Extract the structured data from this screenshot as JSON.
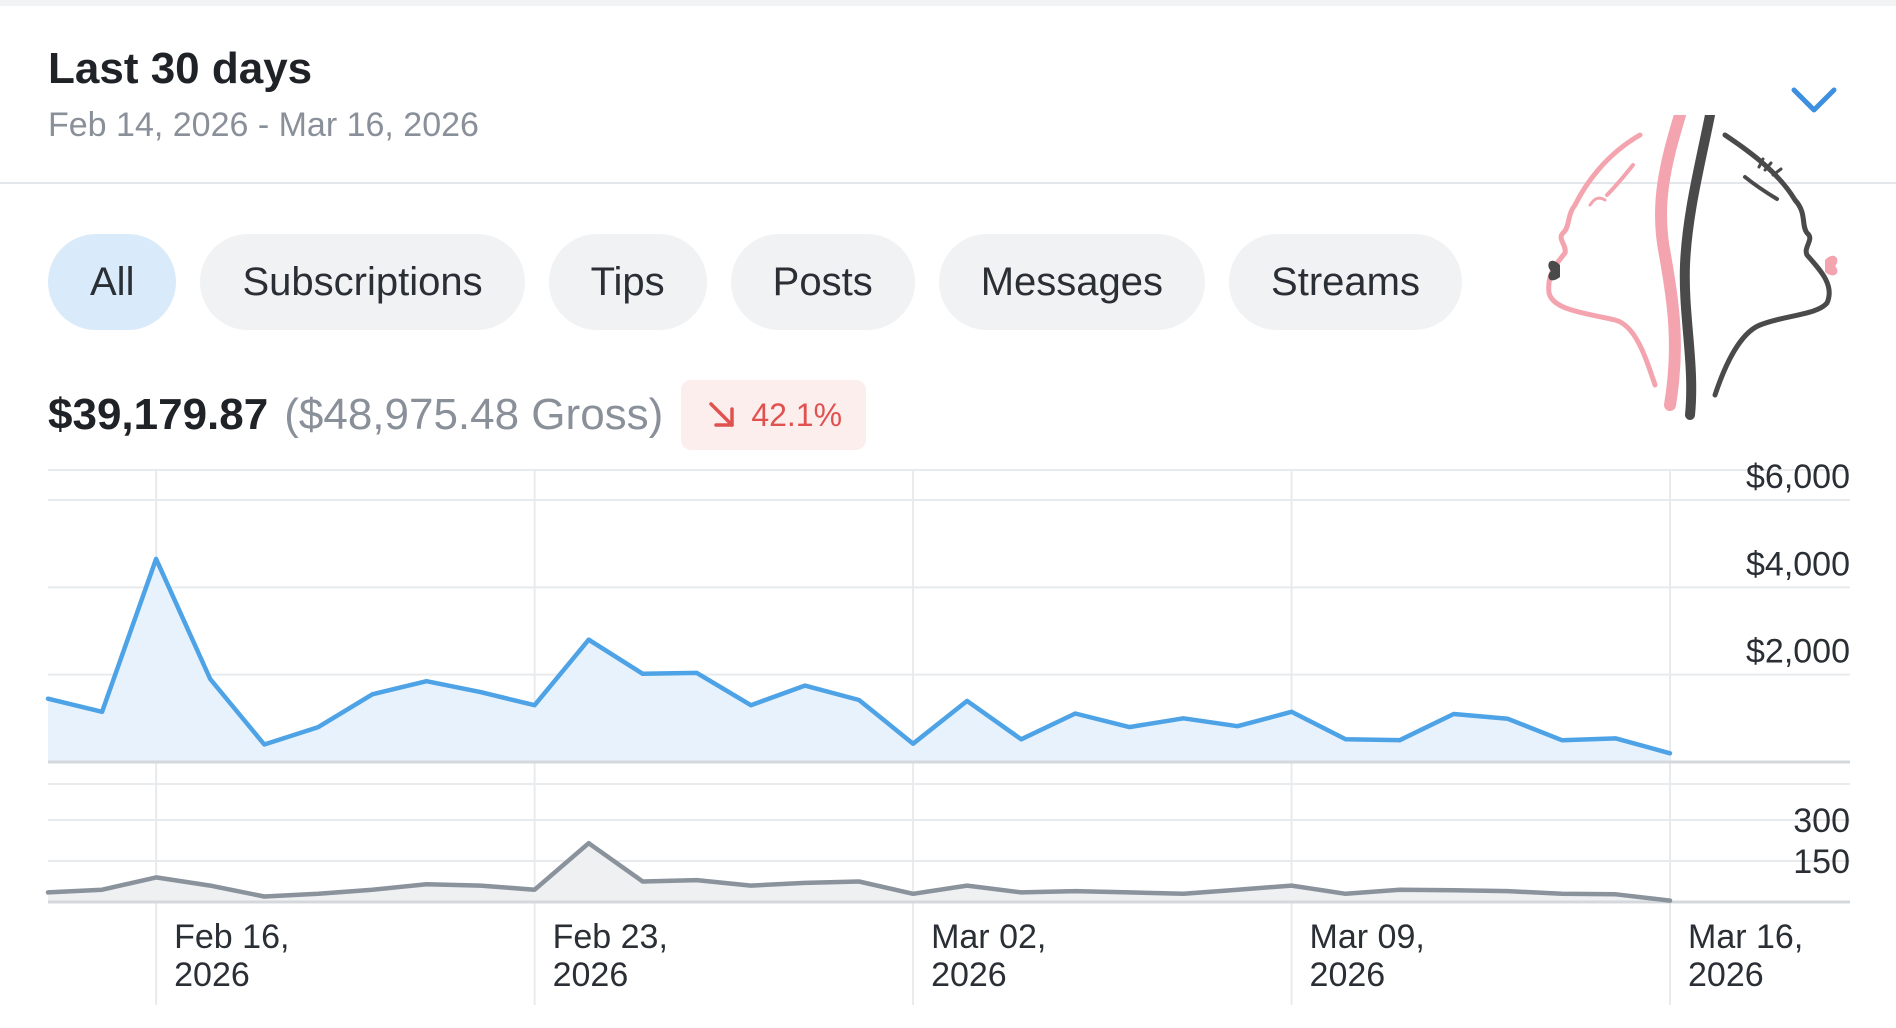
{
  "header": {
    "title": "Last 30 days",
    "date_range": "Feb 14, 2026 - Mar 16, 2026",
    "dropdown_icon": "chevron-down-icon"
  },
  "tabs": [
    {
      "label": "All",
      "active": true
    },
    {
      "label": "Subscriptions",
      "active": false
    },
    {
      "label": "Tips",
      "active": false
    },
    {
      "label": "Posts",
      "active": false
    },
    {
      "label": "Messages",
      "active": false
    },
    {
      "label": "Streams",
      "active": false
    }
  ],
  "summary": {
    "net": "$39,179.87",
    "gross": "($48,975.48 Gross)",
    "change": "42.1%",
    "change_direction": "down",
    "change_icon": "arrow-down-right-icon"
  },
  "colors": {
    "accent": "#4da3e6",
    "earnings_fill": "#e8f2fc",
    "count_line": "#8a929c",
    "count_fill": "#eef0f2",
    "negative": "#e0524f",
    "logo_pink": "#f4a4ae",
    "logo_dark": "#4a4a4a"
  },
  "chart_data": [
    {
      "type": "area",
      "name": "earnings",
      "x": [
        "2026-02-14",
        "2026-02-15",
        "2026-02-16",
        "2026-02-17",
        "2026-02-18",
        "2026-02-19",
        "2026-02-20",
        "2026-02-21",
        "2026-02-22",
        "2026-02-23",
        "2026-02-24",
        "2026-02-25",
        "2026-02-26",
        "2026-02-27",
        "2026-02-28",
        "2026-03-01",
        "2026-03-02",
        "2026-03-03",
        "2026-03-04",
        "2026-03-05",
        "2026-03-06",
        "2026-03-07",
        "2026-03-08",
        "2026-03-09",
        "2026-03-10",
        "2026-03-11",
        "2026-03-12",
        "2026-03-13",
        "2026-03-14",
        "2026-03-15",
        "2026-03-16"
      ],
      "values": [
        1450,
        1150,
        4650,
        1900,
        400,
        800,
        1550,
        1850,
        1600,
        1300,
        2800,
        2020,
        2040,
        1300,
        1750,
        1420,
        420,
        1400,
        520,
        1110,
        800,
        1000,
        820,
        1150,
        520,
        500,
        1100,
        990,
        500,
        540,
        200
      ],
      "ylim": [
        0,
        6000
      ],
      "y_ticks": [
        "$6,000",
        "$4,000",
        "$2,000"
      ],
      "y_tick_values": [
        6000,
        4000,
        2000
      ],
      "grid": true
    },
    {
      "type": "area",
      "name": "count",
      "x": [
        "2026-02-14",
        "2026-02-15",
        "2026-02-16",
        "2026-02-17",
        "2026-02-18",
        "2026-02-19",
        "2026-02-20",
        "2026-02-21",
        "2026-02-22",
        "2026-02-23",
        "2026-02-24",
        "2026-02-25",
        "2026-02-26",
        "2026-02-27",
        "2026-02-28",
        "2026-03-01",
        "2026-03-02",
        "2026-03-03",
        "2026-03-04",
        "2026-03-05",
        "2026-03-06",
        "2026-03-07",
        "2026-03-08",
        "2026-03-09",
        "2026-03-10",
        "2026-03-11",
        "2026-03-12",
        "2026-03-13",
        "2026-03-14",
        "2026-03-15",
        "2026-03-16"
      ],
      "values": [
        35,
        45,
        90,
        60,
        20,
        30,
        45,
        65,
        60,
        45,
        215,
        75,
        80,
        60,
        70,
        75,
        30,
        60,
        35,
        40,
        35,
        30,
        45,
        60,
        30,
        45,
        43,
        40,
        30,
        28,
        5
      ],
      "ylim": [
        0,
        300
      ],
      "y_ticks": [
        "300",
        "150"
      ],
      "y_tick_values": [
        300,
        150
      ],
      "grid": true
    }
  ],
  "x_axis": {
    "ticks": [
      {
        "index": 2,
        "line1": "Feb 16,",
        "line2": "2026"
      },
      {
        "index": 9,
        "line1": "Feb 23,",
        "line2": "2026"
      },
      {
        "index": 16,
        "line1": "Mar 02,",
        "line2": "2026"
      },
      {
        "index": 23,
        "line1": "Mar 09,",
        "line2": "2026"
      },
      {
        "index": 30,
        "line1": "Mar 16,",
        "line2": "2026"
      }
    ]
  }
}
